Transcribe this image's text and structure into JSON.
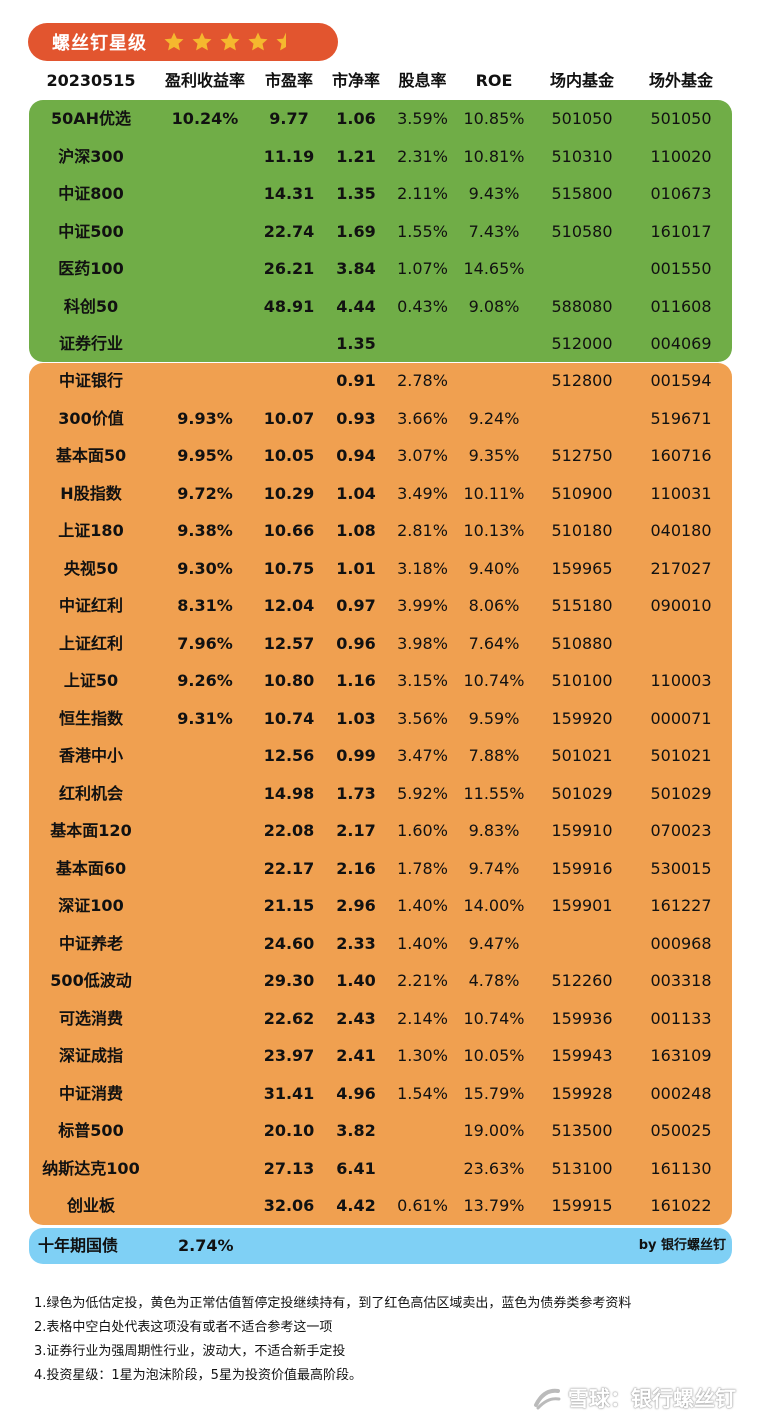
{
  "badge": {
    "title": "螺丝钉星级",
    "stars": 4.5,
    "star_color": "#f5b82e"
  },
  "header": {
    "date": "20230515",
    "columns": [
      "盈利收益率",
      "市盈率",
      "市净率",
      "股息率",
      "ROE",
      "场内基金",
      "场外基金"
    ]
  },
  "colors": {
    "green": "#70ad47",
    "orange": "#f0a050",
    "blue": "#7fd0f5",
    "badge": "#e2552f"
  },
  "green_rows": [
    {
      "name": "50AH优选",
      "ey": "10.24%",
      "pe": "9.77",
      "pb": "1.06",
      "dy": "3.59%",
      "roe": "10.85%",
      "fund_in": "501050",
      "fund_out": "501050"
    },
    {
      "name": "沪深300",
      "ey": "",
      "pe": "11.19",
      "pb": "1.21",
      "dy": "2.31%",
      "roe": "10.81%",
      "fund_in": "510310",
      "fund_out": "110020"
    },
    {
      "name": "中证800",
      "ey": "",
      "pe": "14.31",
      "pb": "1.35",
      "dy": "2.11%",
      "roe": "9.43%",
      "fund_in": "515800",
      "fund_out": "010673"
    },
    {
      "name": "中证500",
      "ey": "",
      "pe": "22.74",
      "pb": "1.69",
      "dy": "1.55%",
      "roe": "7.43%",
      "fund_in": "510580",
      "fund_out": "161017"
    },
    {
      "name": "医药100",
      "ey": "",
      "pe": "26.21",
      "pb": "3.84",
      "dy": "1.07%",
      "roe": "14.65%",
      "fund_in": "",
      "fund_out": "001550"
    },
    {
      "name": "科创50",
      "ey": "",
      "pe": "48.91",
      "pb": "4.44",
      "dy": "0.43%",
      "roe": "9.08%",
      "fund_in": "588080",
      "fund_out": "011608"
    },
    {
      "name": "证券行业",
      "ey": "",
      "pe": "",
      "pb": "1.35",
      "dy": "",
      "roe": "",
      "fund_in": "512000",
      "fund_out": "004069"
    }
  ],
  "orange_rows": [
    {
      "name": "中证银行",
      "ey": "",
      "pe": "",
      "pb": "0.91",
      "dy": "2.78%",
      "roe": "",
      "fund_in": "512800",
      "fund_out": "001594"
    },
    {
      "name": "300价值",
      "ey": "9.93%",
      "pe": "10.07",
      "pb": "0.93",
      "dy": "3.66%",
      "roe": "9.24%",
      "fund_in": "",
      "fund_out": "519671"
    },
    {
      "name": "基本面50",
      "ey": "9.95%",
      "pe": "10.05",
      "pb": "0.94",
      "dy": "3.07%",
      "roe": "9.35%",
      "fund_in": "512750",
      "fund_out": "160716"
    },
    {
      "name": "H股指数",
      "ey": "9.72%",
      "pe": "10.29",
      "pb": "1.04",
      "dy": "3.49%",
      "roe": "10.11%",
      "fund_in": "510900",
      "fund_out": "110031"
    },
    {
      "name": "上证180",
      "ey": "9.38%",
      "pe": "10.66",
      "pb": "1.08",
      "dy": "2.81%",
      "roe": "10.13%",
      "fund_in": "510180",
      "fund_out": "040180"
    },
    {
      "name": "央视50",
      "ey": "9.30%",
      "pe": "10.75",
      "pb": "1.01",
      "dy": "3.18%",
      "roe": "9.40%",
      "fund_in": "159965",
      "fund_out": "217027"
    },
    {
      "name": "中证红利",
      "ey": "8.31%",
      "pe": "12.04",
      "pb": "0.97",
      "dy": "3.99%",
      "roe": "8.06%",
      "fund_in": "515180",
      "fund_out": "090010"
    },
    {
      "name": "上证红利",
      "ey": "7.96%",
      "pe": "12.57",
      "pb": "0.96",
      "dy": "3.98%",
      "roe": "7.64%",
      "fund_in": "510880",
      "fund_out": ""
    },
    {
      "name": "上证50",
      "ey": "9.26%",
      "pe": "10.80",
      "pb": "1.16",
      "dy": "3.15%",
      "roe": "10.74%",
      "fund_in": "510100",
      "fund_out": "110003"
    },
    {
      "name": "恒生指数",
      "ey": "9.31%",
      "pe": "10.74",
      "pb": "1.03",
      "dy": "3.56%",
      "roe": "9.59%",
      "fund_in": "159920",
      "fund_out": "000071"
    },
    {
      "name": "香港中小",
      "ey": "",
      "pe": "12.56",
      "pb": "0.99",
      "dy": "3.47%",
      "roe": "7.88%",
      "fund_in": "501021",
      "fund_out": "501021"
    },
    {
      "name": "红利机会",
      "ey": "",
      "pe": "14.98",
      "pb": "1.73",
      "dy": "5.92%",
      "roe": "11.55%",
      "fund_in": "501029",
      "fund_out": "501029"
    },
    {
      "name": "基本面120",
      "ey": "",
      "pe": "22.08",
      "pb": "2.17",
      "dy": "1.60%",
      "roe": "9.83%",
      "fund_in": "159910",
      "fund_out": "070023"
    },
    {
      "name": "基本面60",
      "ey": "",
      "pe": "22.17",
      "pb": "2.16",
      "dy": "1.78%",
      "roe": "9.74%",
      "fund_in": "159916",
      "fund_out": "530015"
    },
    {
      "name": "深证100",
      "ey": "",
      "pe": "21.15",
      "pb": "2.96",
      "dy": "1.40%",
      "roe": "14.00%",
      "fund_in": "159901",
      "fund_out": "161227"
    },
    {
      "name": "中证养老",
      "ey": "",
      "pe": "24.60",
      "pb": "2.33",
      "dy": "1.40%",
      "roe": "9.47%",
      "fund_in": "",
      "fund_out": "000968"
    },
    {
      "name": "500低波动",
      "ey": "",
      "pe": "29.30",
      "pb": "1.40",
      "dy": "2.21%",
      "roe": "4.78%",
      "fund_in": "512260",
      "fund_out": "003318"
    },
    {
      "name": "可选消费",
      "ey": "",
      "pe": "22.62",
      "pb": "2.43",
      "dy": "2.14%",
      "roe": "10.74%",
      "fund_in": "159936",
      "fund_out": "001133"
    },
    {
      "name": "深证成指",
      "ey": "",
      "pe": "23.97",
      "pb": "2.41",
      "dy": "1.30%",
      "roe": "10.05%",
      "fund_in": "159943",
      "fund_out": "163109"
    },
    {
      "name": "中证消费",
      "ey": "",
      "pe": "31.41",
      "pb": "4.96",
      "dy": "1.54%",
      "roe": "15.79%",
      "fund_in": "159928",
      "fund_out": "000248"
    },
    {
      "name": "标普500",
      "ey": "",
      "pe": "20.10",
      "pb": "3.82",
      "dy": "",
      "roe": "19.00%",
      "fund_in": "513500",
      "fund_out": "050025"
    },
    {
      "name": "纳斯达克100",
      "ey": "",
      "pe": "27.13",
      "pb": "6.41",
      "dy": "",
      "roe": "23.63%",
      "fund_in": "513100",
      "fund_out": "161130"
    },
    {
      "name": "创业板",
      "ey": "",
      "pe": "32.06",
      "pb": "4.42",
      "dy": "0.61%",
      "roe": "13.79%",
      "fund_in": "159915",
      "fund_out": "161022"
    }
  ],
  "bond": {
    "name": "十年期国债",
    "value": "2.74%",
    "byline": "by 银行螺丝钉"
  },
  "notes": [
    "1.绿色为低估定投，黄色为正常估值暂停定投继续持有，到了红色高估区域卖出，蓝色为债券类参考资料",
    "2.表格中空白处代表这项没有或者不适合参考这一项",
    "3.证券行业为强周期性行业，波动大，不适合新手定投",
    "4.投资星级：1星为泡沫阶段，5星为投资价值最高阶段。"
  ],
  "watermark": {
    "text": "雪球：银行螺丝钉"
  }
}
